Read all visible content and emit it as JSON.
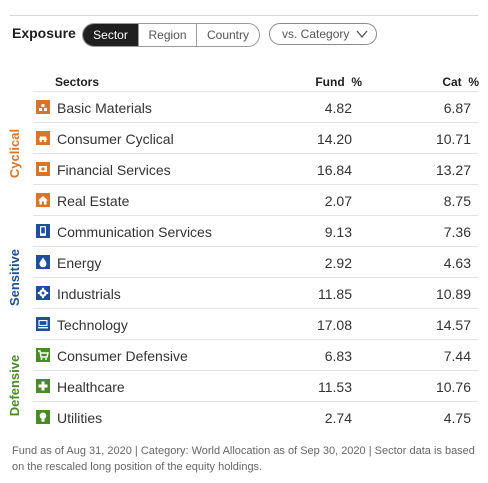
{
  "header": {
    "title": "Exposure",
    "tabs": [
      "Sector",
      "Region",
      "Country"
    ],
    "active_tab": "Sector",
    "comparison_dropdown": "vs. Category"
  },
  "columns": {
    "sectors": "Sectors",
    "fund": "Fund  %",
    "cat": "Cat  %"
  },
  "groups": [
    {
      "name": "Cyclical",
      "color": "#d9752b"
    },
    {
      "name": "Sensitive",
      "color": "#1f4e9c"
    },
    {
      "name": "Defensive",
      "color": "#4b8a2a"
    }
  ],
  "sectors": [
    {
      "label": "Basic Materials",
      "fund": "4.82",
      "cat": "6.87",
      "icon": "basic-materials-icon",
      "group": 0
    },
    {
      "label": "Consumer Cyclical",
      "fund": "14.20",
      "cat": "10.71",
      "icon": "consumer-cyclical-icon",
      "group": 0
    },
    {
      "label": "Financial Services",
      "fund": "16.84",
      "cat": "13.27",
      "icon": "financial-services-icon",
      "group": 0
    },
    {
      "label": "Real Estate",
      "fund": "2.07",
      "cat": "8.75",
      "icon": "real-estate-icon",
      "group": 0
    },
    {
      "label": "Communication Services",
      "fund": "9.13",
      "cat": "7.36",
      "icon": "communication-services-icon",
      "group": 1
    },
    {
      "label": "Energy",
      "fund": "2.92",
      "cat": "4.63",
      "icon": "energy-icon",
      "group": 1
    },
    {
      "label": "Industrials",
      "fund": "11.85",
      "cat": "10.89",
      "icon": "industrials-icon",
      "group": 1
    },
    {
      "label": "Technology",
      "fund": "17.08",
      "cat": "14.57",
      "icon": "technology-icon",
      "group": 1
    },
    {
      "label": "Consumer Defensive",
      "fund": "6.83",
      "cat": "7.44",
      "icon": "consumer-defensive-icon",
      "group": 2
    },
    {
      "label": "Healthcare",
      "fund": "11.53",
      "cat": "10.76",
      "icon": "healthcare-icon",
      "group": 2
    },
    {
      "label": "Utilities",
      "fund": "2.74",
      "cat": "4.75",
      "icon": "utilities-icon",
      "group": 2
    }
  ],
  "footnote": "Fund as of Aug 31, 2020 | Category: World Allocation as of Sep 30, 2020 | Sector data is based on the rescaled long position of the equity holdings."
}
